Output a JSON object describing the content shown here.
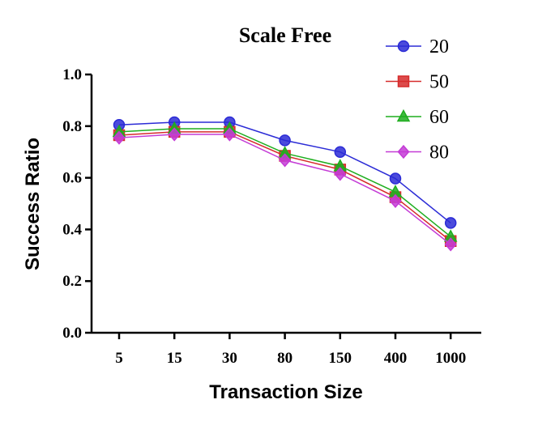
{
  "chart_data": {
    "type": "line",
    "title": "Scale Free",
    "xlabel": "Transaction Size",
    "ylabel": "Success Ratio",
    "categories": [
      "5",
      "15",
      "30",
      "80",
      "150",
      "400",
      "1000"
    ],
    "yticks": [
      "0.0",
      "0.2",
      "0.4",
      "0.6",
      "0.8",
      "1.0"
    ],
    "ylim": [
      0,
      1.0
    ],
    "grid": false,
    "legend_position": "top-right",
    "series": [
      {
        "name": "20",
        "color": "#2b2bd6",
        "marker": "circle",
        "values": [
          0.805,
          0.815,
          0.815,
          0.745,
          0.7,
          0.597,
          0.425
        ]
      },
      {
        "name": "50",
        "color": "#d62b2b",
        "marker": "square",
        "values": [
          0.765,
          0.778,
          0.778,
          0.685,
          0.632,
          0.525,
          0.355
        ]
      },
      {
        "name": "60",
        "color": "#1fae1f",
        "marker": "triangle",
        "values": [
          0.778,
          0.79,
          0.79,
          0.695,
          0.645,
          0.545,
          0.372
        ]
      },
      {
        "name": "80",
        "color": "#c43bd6",
        "marker": "diamond",
        "values": [
          0.755,
          0.768,
          0.768,
          0.668,
          0.615,
          0.51,
          0.342
        ]
      }
    ]
  }
}
